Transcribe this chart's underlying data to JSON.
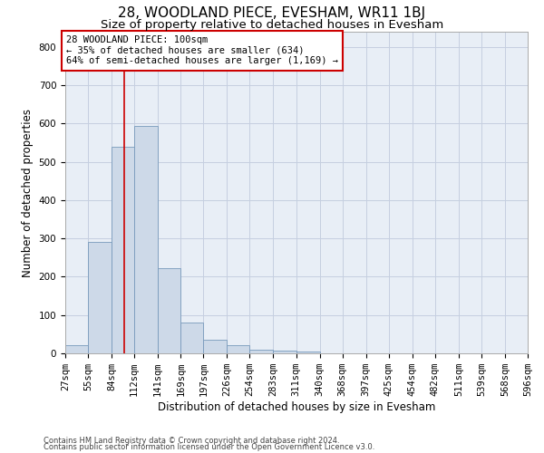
{
  "title": "28, WOODLAND PIECE, EVESHAM, WR11 1BJ",
  "subtitle": "Size of property relative to detached houses in Evesham",
  "xlabel": "Distribution of detached houses by size in Evesham",
  "ylabel": "Number of detached properties",
  "footer_line1": "Contains HM Land Registry data © Crown copyright and database right 2024.",
  "footer_line2": "Contains public sector information licensed under the Open Government Licence v3.0.",
  "bar_color": "#cdd9e8",
  "bar_edge_color": "#7799bb",
  "grid_color": "#c5cfe0",
  "background_color": "#e8eef6",
  "red_line_x": 100,
  "annotation_text": "28 WOODLAND PIECE: 100sqm\n← 35% of detached houses are smaller (634)\n64% of semi-detached houses are larger (1,169) →",
  "annotation_box_color": "#ffffff",
  "annotation_border_color": "#cc0000",
  "bin_edges": [
    27,
    55,
    84,
    112,
    141,
    169,
    197,
    226,
    254,
    283,
    311,
    340,
    368,
    397,
    425,
    454,
    482,
    511,
    539,
    568,
    596
  ],
  "bin_heights": [
    22,
    290,
    540,
    595,
    222,
    80,
    35,
    22,
    10,
    8,
    5,
    0,
    0,
    0,
    0,
    0,
    0,
    0,
    0,
    0
  ],
  "ylim": [
    0,
    840
  ],
  "yticks": [
    0,
    100,
    200,
    300,
    400,
    500,
    600,
    700,
    800
  ],
  "title_fontsize": 11,
  "subtitle_fontsize": 9.5,
  "tick_fontsize": 7.5,
  "ylabel_fontsize": 8.5,
  "xlabel_fontsize": 8.5,
  "annotation_fontsize": 7.5,
  "footer_fontsize": 6.0
}
